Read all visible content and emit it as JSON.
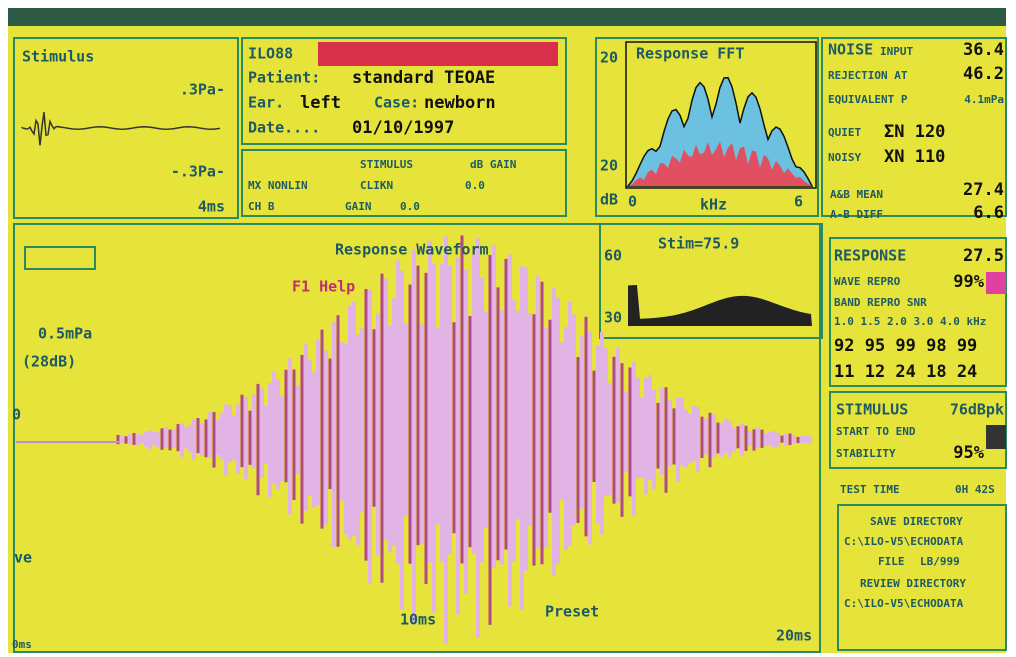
{
  "stimulus_panel": {
    "title": "Stimulus",
    "top_label": ".3Pa-",
    "bottom_label": "-.3Pa-",
    "time_label": "4ms"
  },
  "patient_panel": {
    "id": "ILO88",
    "patient_label": "Patient:",
    "patient": "standard TEOAE",
    "ear_label": "Ear.",
    "ear": "left",
    "case_label": "Case:",
    "case": "newborn",
    "date_label": "Date....",
    "date": "01/10/1997"
  },
  "settings_panel": {
    "stimulus_header": "STIMULUS",
    "gain_header": "dB GAIN",
    "mode": "MX NONLIN",
    "stimulus": "CLIKN",
    "gain": "0.0",
    "channel": "CH B",
    "channel_gain_label": "GAIN",
    "channel_gain": "0.0"
  },
  "fft_panel": {
    "title": "Response FFT",
    "y_top": "20",
    "y_bottom": "20",
    "y_unit": "dB",
    "x_start": "0",
    "x_unit": "kHz",
    "x_end": "6"
  },
  "noise_panel": {
    "title": "NOISE",
    "input_label": "INPUT",
    "input": "36.4",
    "rejection_label": "REJECTION AT",
    "rejection": "46.2",
    "equivalent_label": "EQUIVALENT P",
    "equivalent": "4.1mPa",
    "quiet_label": "QUIET",
    "quiet": "ΣN 120",
    "noisy_label": "NOISY",
    "noisy": "XN 110",
    "mean_label": "A&B MEAN",
    "mean": "27.4",
    "diff_label": "A-B DIFF",
    "diff": "6.6"
  },
  "waveform_panel": {
    "title": "Response Waveform",
    "help": "F1 Help",
    "scale": "0.5mPa",
    "scale_db": "(28dB)",
    "zero": "0",
    "side_label": "ve",
    "mid_time": "10ms",
    "preset": "Preset",
    "end_time": "20ms",
    "start_time": "0ms"
  },
  "stim_panel": {
    "title": "Stim=75.9",
    "y_top": "60",
    "y_bottom": "30"
  },
  "response_panel": {
    "title": "RESPONSE",
    "value": "27.5",
    "repro_label": "WAVE REPRO",
    "repro": "99%",
    "band_label": "BAND REPRO SNR",
    "bands": "1.0 1.5 2.0 3.0 4.0 kHz",
    "repro_row": "92 95 99 98 99",
    "snr_row": "11 12 24 18 24"
  },
  "stimulus_summary": {
    "title": "STIMULUS",
    "value": "76dBpk",
    "start_label": "START TO END",
    "stability_label": "STABILITY",
    "stability": "95%"
  },
  "test_time": {
    "label": "TEST TIME",
    "value": "0H 42S"
  },
  "directory_panel": {
    "save_label": "SAVE DIRECTORY",
    "save_path": "C:\\ILO-V5\\ECHODATA",
    "file_label": "FILE",
    "file": "LB/999",
    "review_label": "REVIEW DIRECTORY",
    "review_path": "C:\\ILO-V5\\ECHODATA"
  }
}
